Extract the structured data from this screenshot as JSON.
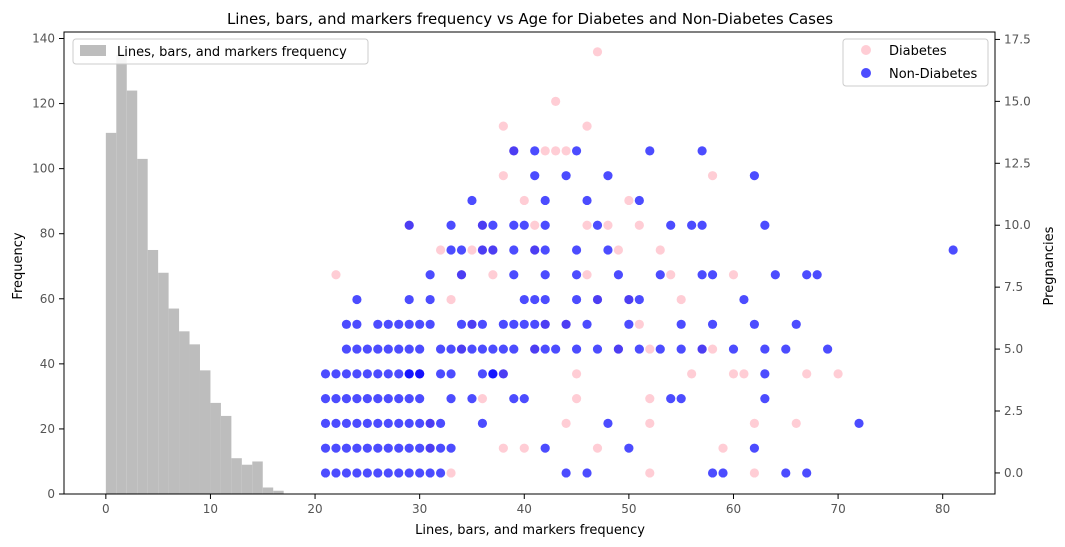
{
  "chart_data": {
    "type": "bar+scatter",
    "title": "Lines, bars, and markers frequency vs Age for Diabetes and Non-Diabetes Cases",
    "xlabel": "Lines, bars, and markers frequency",
    "ylabel_left": "Frequency",
    "ylabel_right": "Pregnancies",
    "xlim": [
      -4,
      85
    ],
    "ylim_left": [
      0,
      142
    ],
    "ylim_right": [
      -0.85,
      17.8
    ],
    "x_ticks": [
      0,
      10,
      20,
      30,
      40,
      50,
      60,
      70,
      80
    ],
    "y_ticks_left": [
      0,
      20,
      40,
      60,
      80,
      100,
      120,
      140
    ],
    "y_ticks_right": [
      "0.0",
      "2.5",
      "5.0",
      "7.5",
      "10.0",
      "12.5",
      "15.0",
      "17.5"
    ],
    "histogram": {
      "name": "Lines, bars, and markers frequency",
      "color": "#bdbdbd",
      "bin_width": 1,
      "bin_starts": [
        0,
        1,
        2,
        3,
        4,
        5,
        6,
        7,
        8,
        9,
        10,
        11,
        12,
        13,
        14,
        15,
        16
      ],
      "values": [
        111,
        135,
        124,
        103,
        75,
        68,
        57,
        50,
        46,
        38,
        28,
        24,
        11,
        9,
        10,
        2,
        1
      ]
    },
    "scatter_series": [
      {
        "name": "Diabetes",
        "color": "#ffc0cb",
        "points": [
          [
            22,
            8
          ],
          [
            29,
            10
          ],
          [
            31,
            1
          ],
          [
            31,
            2
          ],
          [
            32,
            9
          ],
          [
            33,
            7
          ],
          [
            34,
            8
          ],
          [
            35,
            6
          ],
          [
            36,
            9
          ],
          [
            36,
            10
          ],
          [
            37,
            8
          ],
          [
            37,
            9
          ],
          [
            38,
            12
          ],
          [
            38,
            14
          ],
          [
            38,
            4
          ],
          [
            38,
            1
          ],
          [
            39,
            13
          ],
          [
            40,
            11
          ],
          [
            41,
            9
          ],
          [
            41,
            10
          ],
          [
            42,
            13
          ],
          [
            43,
            15
          ],
          [
            43,
            13
          ],
          [
            44,
            13
          ],
          [
            44,
            6
          ],
          [
            44,
            2
          ],
          [
            45,
            4
          ],
          [
            45,
            3
          ],
          [
            46,
            14
          ],
          [
            46,
            10
          ],
          [
            46,
            8
          ],
          [
            47,
            17
          ],
          [
            47,
            7
          ],
          [
            47,
            1
          ],
          [
            48,
            10
          ],
          [
            49,
            9
          ],
          [
            49,
            5
          ],
          [
            50,
            11
          ],
          [
            50,
            7
          ],
          [
            51,
            10
          ],
          [
            51,
            6
          ],
          [
            52,
            5
          ],
          [
            52,
            3
          ],
          [
            52,
            2
          ],
          [
            52,
            0
          ],
          [
            53,
            9
          ],
          [
            54,
            8
          ],
          [
            55,
            7
          ],
          [
            56,
            4
          ],
          [
            57,
            5
          ],
          [
            58,
            12
          ],
          [
            58,
            5
          ],
          [
            59,
            1
          ],
          [
            60,
            8
          ],
          [
            60,
            4
          ],
          [
            61,
            4
          ],
          [
            62,
            2
          ],
          [
            62,
            0
          ],
          [
            66,
            2
          ],
          [
            67,
            4
          ],
          [
            70,
            4
          ],
          [
            40,
            1
          ],
          [
            42,
            6
          ],
          [
            35,
            9
          ],
          [
            33,
            0
          ],
          [
            30,
            4
          ],
          [
            34,
            5
          ],
          [
            36,
            3
          ],
          [
            41,
            5
          ]
        ]
      },
      {
        "name": "Non-Diabetes",
        "color": "#0000ff",
        "points": [
          [
            21,
            0
          ],
          [
            22,
            0
          ],
          [
            23,
            0
          ],
          [
            24,
            0
          ],
          [
            25,
            0
          ],
          [
            26,
            0
          ],
          [
            27,
            0
          ],
          [
            28,
            0
          ],
          [
            29,
            0
          ],
          [
            30,
            0
          ],
          [
            31,
            0
          ],
          [
            32,
            0
          ],
          [
            21,
            1
          ],
          [
            22,
            1
          ],
          [
            23,
            1
          ],
          [
            24,
            1
          ],
          [
            25,
            1
          ],
          [
            26,
            1
          ],
          [
            27,
            1
          ],
          [
            28,
            1
          ],
          [
            29,
            1
          ],
          [
            30,
            1
          ],
          [
            31,
            1
          ],
          [
            32,
            1
          ],
          [
            33,
            1
          ],
          [
            21,
            2
          ],
          [
            22,
            2
          ],
          [
            23,
            2
          ],
          [
            24,
            2
          ],
          [
            25,
            2
          ],
          [
            26,
            2
          ],
          [
            27,
            2
          ],
          [
            28,
            2
          ],
          [
            29,
            2
          ],
          [
            30,
            2
          ],
          [
            31,
            2
          ],
          [
            32,
            2
          ],
          [
            21,
            3
          ],
          [
            22,
            3
          ],
          [
            23,
            3
          ],
          [
            24,
            3
          ],
          [
            25,
            3
          ],
          [
            26,
            3
          ],
          [
            27,
            3
          ],
          [
            28,
            3
          ],
          [
            29,
            3
          ],
          [
            30,
            3
          ],
          [
            21,
            4
          ],
          [
            22,
            4
          ],
          [
            23,
            4
          ],
          [
            24,
            4
          ],
          [
            25,
            4
          ],
          [
            26,
            4
          ],
          [
            27,
            4
          ],
          [
            28,
            4
          ],
          [
            29,
            4
          ],
          [
            30,
            4
          ],
          [
            32,
            4
          ],
          [
            33,
            4
          ],
          [
            23,
            5
          ],
          [
            24,
            5
          ],
          [
            25,
            5
          ],
          [
            26,
            5
          ],
          [
            27,
            5
          ],
          [
            28,
            5
          ],
          [
            29,
            5
          ],
          [
            30,
            5
          ],
          [
            32,
            5
          ],
          [
            33,
            5
          ],
          [
            34,
            5
          ],
          [
            35,
            5
          ],
          [
            36,
            5
          ],
          [
            37,
            5
          ],
          [
            38,
            5
          ],
          [
            39,
            5
          ],
          [
            41,
            5
          ],
          [
            42,
            5
          ],
          [
            43,
            5
          ],
          [
            45,
            5
          ],
          [
            47,
            5
          ],
          [
            49,
            5
          ],
          [
            51,
            5
          ],
          [
            53,
            5
          ],
          [
            55,
            5
          ],
          [
            57,
            5
          ],
          [
            60,
            5
          ],
          [
            63,
            5
          ],
          [
            65,
            5
          ],
          [
            69,
            5
          ],
          [
            23,
            6
          ],
          [
            24,
            6
          ],
          [
            26,
            6
          ],
          [
            27,
            6
          ],
          [
            28,
            6
          ],
          [
            29,
            6
          ],
          [
            30,
            6
          ],
          [
            31,
            6
          ],
          [
            34,
            6
          ],
          [
            35,
            6
          ],
          [
            36,
            6
          ],
          [
            38,
            6
          ],
          [
            39,
            6
          ],
          [
            40,
            6
          ],
          [
            41,
            6
          ],
          [
            42,
            6
          ],
          [
            44,
            6
          ],
          [
            46,
            6
          ],
          [
            50,
            6
          ],
          [
            55,
            6
          ],
          [
            58,
            6
          ],
          [
            62,
            6
          ],
          [
            66,
            6
          ],
          [
            24,
            7
          ],
          [
            29,
            7
          ],
          [
            31,
            7
          ],
          [
            40,
            7
          ],
          [
            41,
            7
          ],
          [
            42,
            7
          ],
          [
            45,
            7
          ],
          [
            47,
            7
          ],
          [
            50,
            7
          ],
          [
            51,
            7
          ],
          [
            61,
            7
          ],
          [
            31,
            8
          ],
          [
            34,
            8
          ],
          [
            39,
            8
          ],
          [
            42,
            8
          ],
          [
            45,
            8
          ],
          [
            49,
            8
          ],
          [
            53,
            8
          ],
          [
            57,
            8
          ],
          [
            58,
            8
          ],
          [
            64,
            8
          ],
          [
            67,
            8
          ],
          [
            68,
            8
          ],
          [
            33,
            9
          ],
          [
            34,
            9
          ],
          [
            36,
            9
          ],
          [
            37,
            9
          ],
          [
            39,
            9
          ],
          [
            41,
            9
          ],
          [
            42,
            9
          ],
          [
            45,
            9
          ],
          [
            48,
            9
          ],
          [
            81,
            9
          ],
          [
            29,
            10
          ],
          [
            33,
            10
          ],
          [
            36,
            10
          ],
          [
            37,
            10
          ],
          [
            39,
            10
          ],
          [
            40,
            10
          ],
          [
            42,
            10
          ],
          [
            47,
            10
          ],
          [
            54,
            10
          ],
          [
            56,
            10
          ],
          [
            57,
            10
          ],
          [
            63,
            10
          ],
          [
            35,
            11
          ],
          [
            46,
            11
          ],
          [
            51,
            11
          ],
          [
            42,
            11
          ],
          [
            41,
            12
          ],
          [
            44,
            12
          ],
          [
            48,
            12
          ],
          [
            62,
            12
          ],
          [
            39,
            13
          ],
          [
            41,
            13
          ],
          [
            45,
            13
          ],
          [
            52,
            13
          ],
          [
            57,
            13
          ],
          [
            33,
            3
          ],
          [
            35,
            3
          ],
          [
            36,
            2
          ],
          [
            37,
            4
          ],
          [
            38,
            4
          ],
          [
            39,
            3
          ],
          [
            40,
            3
          ],
          [
            42,
            1
          ],
          [
            44,
            0
          ],
          [
            46,
            0
          ],
          [
            48,
            2
          ],
          [
            50,
            1
          ],
          [
            54,
            3
          ],
          [
            55,
            3
          ],
          [
            58,
            0
          ],
          [
            59,
            0
          ],
          [
            62,
            1
          ],
          [
            63,
            3
          ],
          [
            63,
            4
          ],
          [
            65,
            0
          ],
          [
            67,
            0
          ],
          [
            72,
            2
          ],
          [
            29,
            4
          ],
          [
            30,
            4
          ],
          [
            36,
            4
          ],
          [
            37,
            4
          ]
        ]
      }
    ],
    "legend_left": {
      "position": "upper-left",
      "entries": [
        "Lines, bars, and markers frequency"
      ]
    },
    "legend_right": {
      "position": "upper-right",
      "entries": [
        "Diabetes",
        "Non-Diabetes"
      ]
    }
  }
}
